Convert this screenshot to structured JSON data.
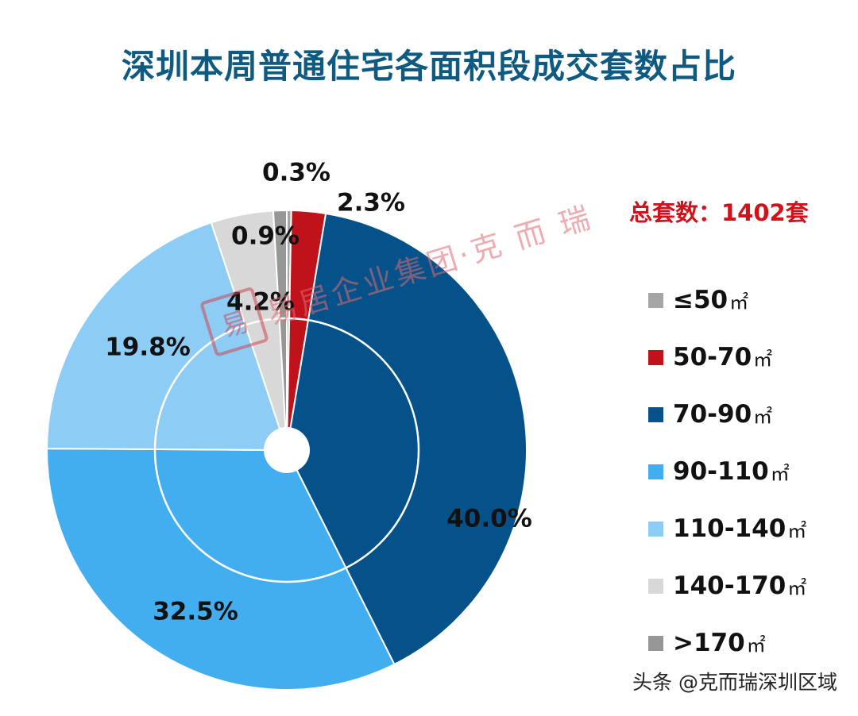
{
  "title": "深圳本周普通住宅各面积段成交套数占比",
  "total": "总套数：1402套",
  "unit": "㎡",
  "watermark": {
    "seal": "易",
    "text": "易居企业集团·克 而 瑞"
  },
  "footer": "头条 @克而瑞深圳区域",
  "colors": {
    "title": "#0e5a80",
    "total": "#d0121b"
  },
  "chart_data": {
    "type": "pie",
    "subtype": "donut",
    "title": "深圳本周普通住宅各面积段成交套数占比",
    "total_units": 1402,
    "legend_position": "right",
    "start_angle_deg": 0,
    "direction": "clockwise",
    "categories": [
      "≤50",
      "50-70",
      "70-90",
      "90-110",
      "110-140",
      "140-170",
      ">170"
    ],
    "values": [
      0.3,
      2.3,
      40.0,
      32.5,
      19.8,
      4.2,
      0.9
    ],
    "data_labels": [
      "0.3%",
      "2.3%",
      "40.0%",
      "32.5%",
      "19.8%",
      "4.2%",
      "0.9%"
    ],
    "colors": [
      "#a6a6a6",
      "#c0121a",
      "#05528a",
      "#43aeef",
      "#8cccf5",
      "#d8d8d8",
      "#979797"
    ]
  }
}
